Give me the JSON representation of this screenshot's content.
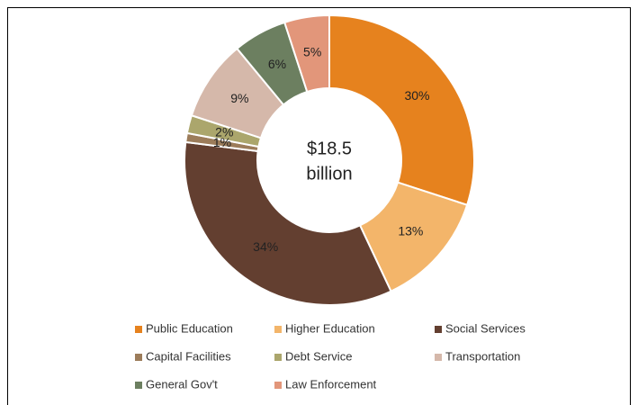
{
  "chart_data": {
    "type": "donut",
    "categories": [
      "Public Education",
      "Higher Education",
      "Social Services",
      "Capital Facilities",
      "Debt Service",
      "Transportation",
      "General Gov't",
      "Law Enforcement"
    ],
    "values": [
      30,
      13,
      34,
      1,
      2,
      9,
      6,
      5
    ],
    "value_labels": [
      "30%",
      "13%",
      "34%",
      "1%",
      "2%",
      "9%",
      "6%",
      "5%"
    ],
    "colors": [
      "#e6821e",
      "#f3b56a",
      "#633f30",
      "#9c7c5a",
      "#aba66c",
      "#d5b8aa",
      "#6c7f60",
      "#e2967a"
    ],
    "center_label": [
      "$18.5",
      "billion"
    ],
    "legend": "bottom"
  }
}
